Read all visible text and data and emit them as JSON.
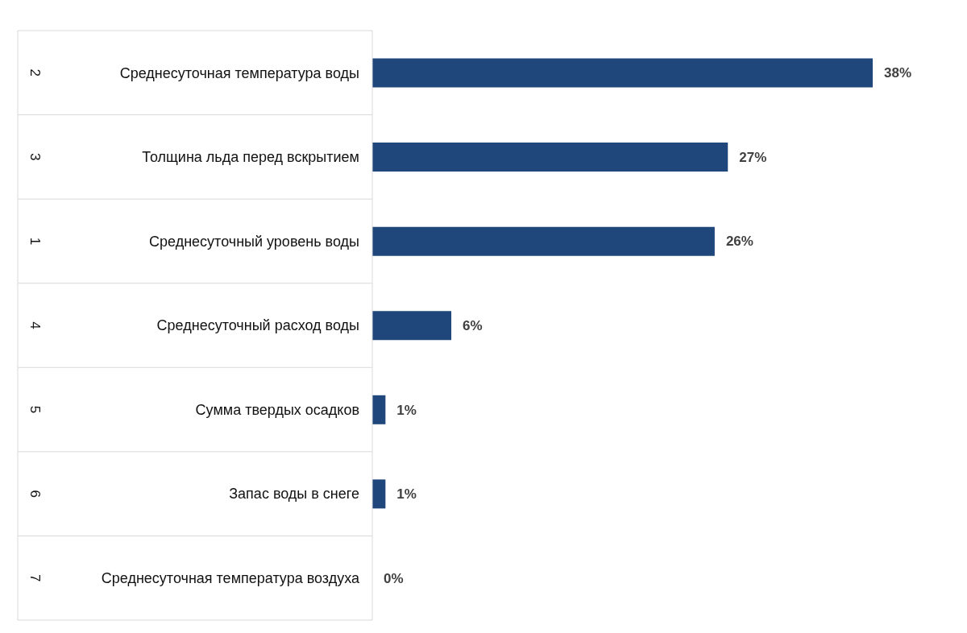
{
  "chart_data": {
    "type": "bar",
    "orientation": "horizontal",
    "categories": [
      "Среднесуточная температура воды",
      "Толщина льда перед вскрытием",
      "Среднесуточный уровень воды",
      "Среднесуточный расход воды",
      "Сумма твердых осадков",
      "Запас воды в снеге",
      "Среднесуточная температура воздуха"
    ],
    "values": [
      38,
      27,
      26,
      6,
      1,
      1,
      0
    ],
    "value_labels": [
      "38%",
      "27%",
      "26%",
      "6%",
      "1%",
      "1%",
      "0%"
    ],
    "color": "#1f477b",
    "annotations": [
      "2",
      "3",
      "1",
      "4",
      "5",
      "6",
      "7"
    ]
  }
}
